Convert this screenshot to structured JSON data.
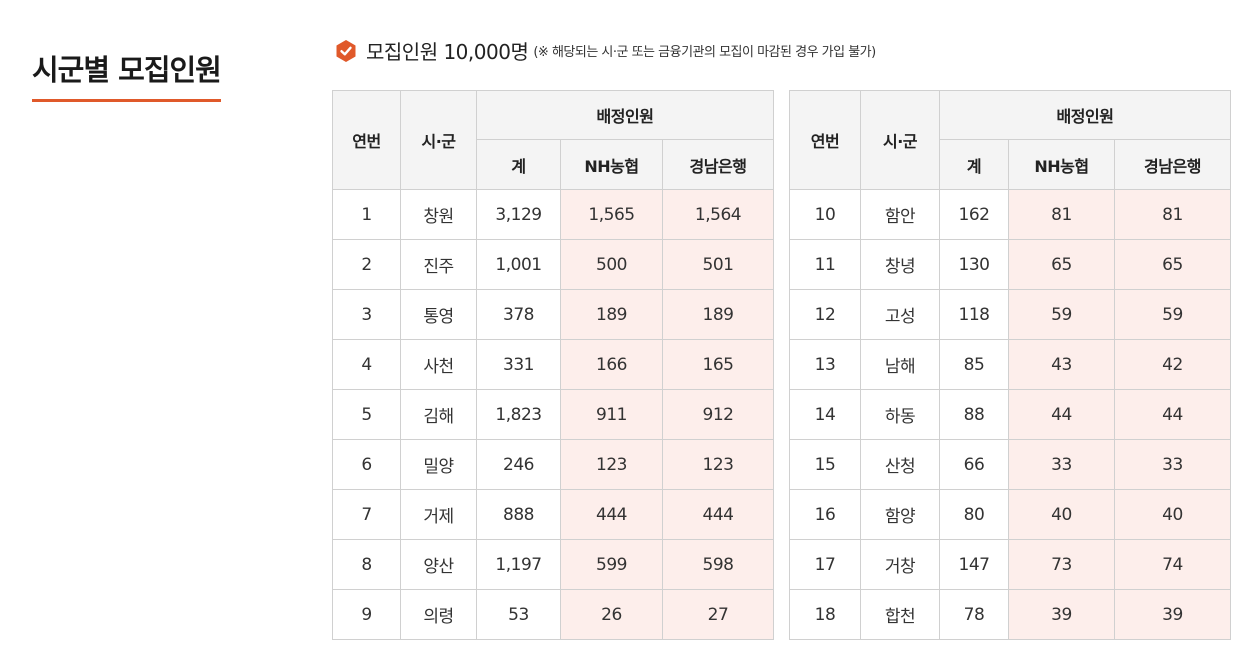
{
  "title": "시군별 모집인원",
  "summary": {
    "main": "모집인원 10,000명",
    "note": "(※ 해당되는 시·군 또는 금융기관의 모집이 마감된 경우 가입 불가)"
  },
  "colors": {
    "accent": "#e0592a",
    "highlight": "#fdeeeb",
    "header_bg": "#f4f4f4"
  },
  "headers": {
    "no": "연번",
    "region": "시·군",
    "allocation": "배정인원",
    "total": "계",
    "nh": "NH농협",
    "kn": "경남은행"
  },
  "tables": [
    {
      "rows": [
        {
          "no": "1",
          "region": "창원",
          "total": "3,129",
          "nh": "1,565",
          "kn": "1,564"
        },
        {
          "no": "2",
          "region": "진주",
          "total": "1,001",
          "nh": "500",
          "kn": "501"
        },
        {
          "no": "3",
          "region": "통영",
          "total": "378",
          "nh": "189",
          "kn": "189"
        },
        {
          "no": "4",
          "region": "사천",
          "total": "331",
          "nh": "166",
          "kn": "165"
        },
        {
          "no": "5",
          "region": "김해",
          "total": "1,823",
          "nh": "911",
          "kn": "912"
        },
        {
          "no": "6",
          "region": "밀양",
          "total": "246",
          "nh": "123",
          "kn": "123"
        },
        {
          "no": "7",
          "region": "거제",
          "total": "888",
          "nh": "444",
          "kn": "444"
        },
        {
          "no": "8",
          "region": "양산",
          "total": "1,197",
          "nh": "599",
          "kn": "598"
        },
        {
          "no": "9",
          "region": "의령",
          "total": "53",
          "nh": "26",
          "kn": "27"
        }
      ]
    },
    {
      "rows": [
        {
          "no": "10",
          "region": "함안",
          "total": "162",
          "nh": "81",
          "kn": "81"
        },
        {
          "no": "11",
          "region": "창녕",
          "total": "130",
          "nh": "65",
          "kn": "65"
        },
        {
          "no": "12",
          "region": "고성",
          "total": "118",
          "nh": "59",
          "kn": "59"
        },
        {
          "no": "13",
          "region": "남해",
          "total": "85",
          "nh": "43",
          "kn": "42"
        },
        {
          "no": "14",
          "region": "하동",
          "total": "88",
          "nh": "44",
          "kn": "44"
        },
        {
          "no": "15",
          "region": "산청",
          "total": "66",
          "nh": "33",
          "kn": "33"
        },
        {
          "no": "16",
          "region": "함양",
          "total": "80",
          "nh": "40",
          "kn": "40"
        },
        {
          "no": "17",
          "region": "거창",
          "total": "147",
          "nh": "73",
          "kn": "74"
        },
        {
          "no": "18",
          "region": "합천",
          "total": "78",
          "nh": "39",
          "kn": "39"
        }
      ]
    }
  ]
}
